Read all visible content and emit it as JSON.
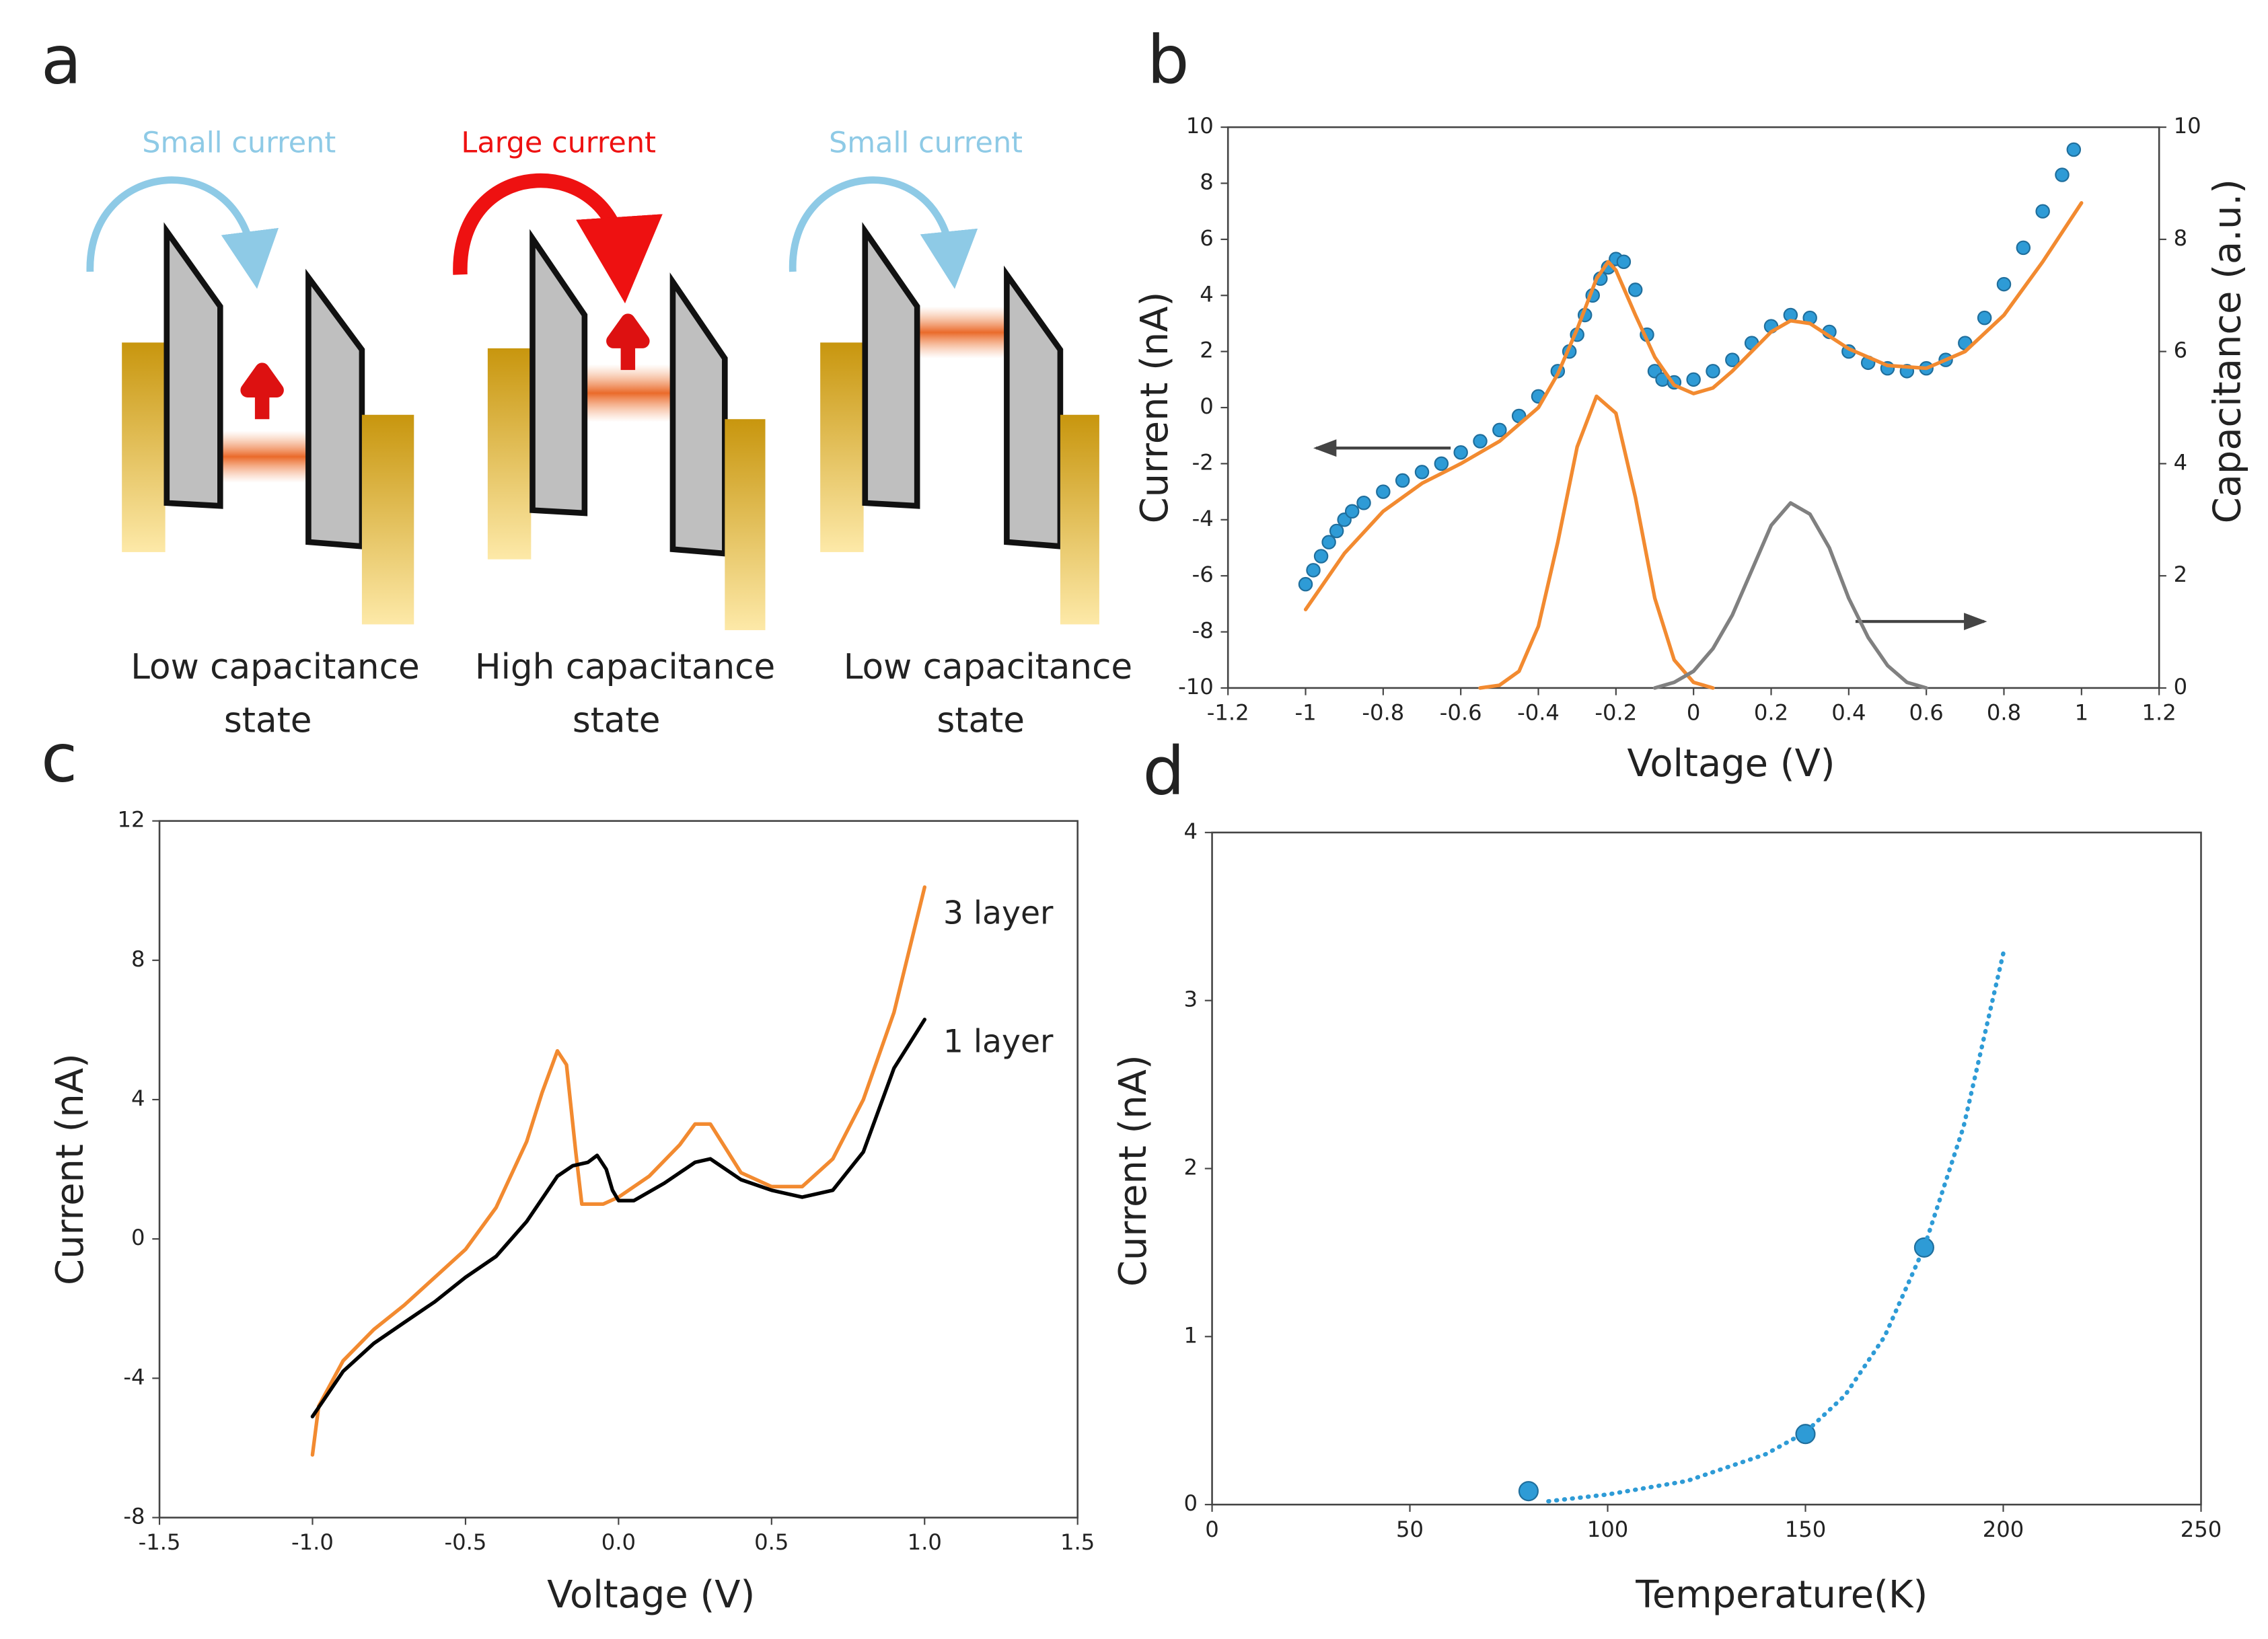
{
  "diagram": {
    "panel": "a",
    "states": [
      {
        "current": "Small current",
        "caption": [
          "Low capacitance",
          "state"
        ]
      },
      {
        "current": "Large current",
        "caption": [
          "High capacitance",
          "state"
        ]
      },
      {
        "current": "Small current",
        "caption": [
          "Low capacitance",
          "state"
        ]
      }
    ]
  },
  "chart_data": [
    {
      "type": "line",
      "panel": "b",
      "xlabel": "Voltage (V)",
      "ylabel": "Current (nA)",
      "y2label": "Capacitance (a.u.)",
      "xlim": [
        -1.2,
        1.2
      ],
      "xticks": [
        -1.2,
        -1,
        -0.8,
        -0.6,
        -0.4,
        -0.2,
        0,
        0.2,
        0.4,
        0.6,
        0.8,
        1,
        1.2
      ],
      "ylim": [
        -10,
        10
      ],
      "yticks": [
        -10,
        -8,
        -6,
        -4,
        -2,
        0,
        2,
        4,
        6,
        8,
        10
      ],
      "y2lim": [
        0,
        10
      ],
      "y2ticks": [
        0,
        2,
        4,
        6,
        8,
        10
      ],
      "series": [
        {
          "mode": "markers",
          "color": "#2e9bd6",
          "x": [
            -1,
            -0.98,
            -0.96,
            -0.94,
            -0.92,
            -0.9,
            -0.88,
            -0.85,
            -0.8,
            -0.75,
            -0.7,
            -0.65,
            -0.6,
            -0.55,
            -0.5,
            -0.45,
            -0.4,
            -0.35,
            -0.32,
            -0.3,
            -0.28,
            -0.26,
            -0.24,
            -0.22,
            -0.2,
            -0.18,
            -0.15,
            -0.12,
            -0.1,
            -0.08,
            -0.05,
            0,
            0.05,
            0.1,
            0.15,
            0.2,
            0.25,
            0.3,
            0.35,
            0.4,
            0.45,
            0.5,
            0.55,
            0.6,
            0.65,
            0.7,
            0.75,
            0.8,
            0.85,
            0.9,
            0.95,
            0.98
          ],
          "values": [
            -6.3,
            -5.8,
            -5.3,
            -4.8,
            -4.4,
            -4.0,
            -3.7,
            -3.4,
            -3.0,
            -2.6,
            -2.3,
            -2.0,
            -1.6,
            -1.2,
            -0.8,
            -0.3,
            0.4,
            1.3,
            2.0,
            2.6,
            3.3,
            4.0,
            4.6,
            5.0,
            5.3,
            5.2,
            4.2,
            2.6,
            1.3,
            1.0,
            0.9,
            1.0,
            1.3,
            1.7,
            2.3,
            2.9,
            3.3,
            3.2,
            2.7,
            2.0,
            1.6,
            1.4,
            1.3,
            1.4,
            1.7,
            2.3,
            3.2,
            4.4,
            5.7,
            7.0,
            8.3,
            9.2
          ]
        },
        {
          "mode": "lines",
          "color": "#f28a30",
          "x": [
            -1,
            -0.9,
            -0.8,
            -0.7,
            -0.6,
            -0.5,
            -0.4,
            -0.35,
            -0.3,
            -0.25,
            -0.22,
            -0.2,
            -0.15,
            -0.1,
            -0.05,
            0,
            0.05,
            0.1,
            0.2,
            0.25,
            0.3,
            0.4,
            0.5,
            0.6,
            0.7,
            0.8,
            0.9,
            1
          ],
          "values": [
            -7.2,
            -5.2,
            -3.7,
            -2.7,
            -2.0,
            -1.2,
            0.0,
            1.2,
            2.8,
            4.6,
            5.2,
            4.9,
            3.3,
            1.8,
            0.8,
            0.5,
            0.7,
            1.3,
            2.7,
            3.1,
            3.0,
            2.1,
            1.5,
            1.4,
            2.0,
            3.3,
            5.2,
            7.3
          ]
        },
        {
          "mode": "lines",
          "color": "#f28a30",
          "axis": "y2",
          "x": [
            -0.55,
            -0.5,
            -0.45,
            -0.4,
            -0.35,
            -0.3,
            -0.25,
            -0.2,
            -0.15,
            -0.1,
            -0.05,
            0,
            0.05
          ],
          "values": [
            0,
            0.05,
            0.3,
            1.1,
            2.6,
            4.3,
            5.2,
            4.9,
            3.4,
            1.6,
            0.5,
            0.1,
            0
          ]
        },
        {
          "mode": "lines",
          "color": "#808080",
          "axis": "y2",
          "x": [
            -0.1,
            -0.05,
            0,
            0.05,
            0.1,
            0.15,
            0.2,
            0.25,
            0.3,
            0.35,
            0.4,
            0.45,
            0.5,
            0.55,
            0.6
          ],
          "values": [
            0,
            0.1,
            0.3,
            0.7,
            1.3,
            2.1,
            2.9,
            3.3,
            3.1,
            2.5,
            1.6,
            0.9,
            0.4,
            0.1,
            0
          ]
        }
      ]
    },
    {
      "type": "line",
      "panel": "c",
      "xlabel": "Voltage (V)",
      "ylabel": "Current (nA)",
      "xlim": [
        -1.5,
        1.5
      ],
      "xticks": [
        -1.5,
        {
          "value": -1,
          "label": "-1.0"
        },
        -0.5,
        {
          "value": 0,
          "label": "0.0"
        },
        0.5,
        {
          "value": 1,
          "label": "1.0"
        },
        1.5
      ],
      "ylim": [
        -8,
        12
      ],
      "yticks": [
        -8,
        -4,
        0,
        4,
        8,
        12
      ],
      "series": [
        {
          "name": "3 layer",
          "mode": "lines",
          "color": "#f28a30",
          "x": [
            -1,
            -0.98,
            -0.9,
            -0.8,
            -0.7,
            -0.6,
            -0.5,
            -0.4,
            -0.3,
            -0.25,
            -0.2,
            -0.17,
            -0.14,
            -0.12,
            -0.05,
            0,
            0.1,
            0.2,
            0.25,
            0.3,
            0.35,
            0.4,
            0.5,
            0.6,
            0.7,
            0.8,
            0.9,
            1
          ],
          "values": [
            -6.2,
            -4.8,
            -3.5,
            -2.6,
            -1.9,
            -1.1,
            -0.3,
            0.9,
            2.8,
            4.2,
            5.4,
            5.0,
            2.5,
            1.0,
            1.0,
            1.2,
            1.8,
            2.7,
            3.3,
            3.3,
            2.6,
            1.9,
            1.5,
            1.5,
            2.3,
            4.0,
            6.5,
            10.1
          ]
        },
        {
          "name": "1 layer",
          "mode": "lines",
          "color": "#000000",
          "x": [
            -1,
            -0.9,
            -0.8,
            -0.7,
            -0.6,
            -0.5,
            -0.4,
            -0.3,
            -0.2,
            -0.15,
            -0.1,
            -0.07,
            -0.04,
            -0.02,
            0,
            0.05,
            0.15,
            0.25,
            0.3,
            0.4,
            0.5,
            0.6,
            0.7,
            0.8,
            0.9,
            1
          ],
          "values": [
            -5.1,
            -3.8,
            -3.0,
            -2.4,
            -1.8,
            -1.1,
            -0.5,
            0.5,
            1.8,
            2.1,
            2.2,
            2.4,
            2.0,
            1.4,
            1.1,
            1.1,
            1.6,
            2.2,
            2.3,
            1.7,
            1.4,
            1.2,
            1.4,
            2.5,
            4.9,
            6.3
          ]
        }
      ]
    },
    {
      "type": "scatter",
      "panel": "d",
      "xlabel": "Temperature(K)",
      "ylabel": "Current (nA)",
      "xlim": [
        0,
        250
      ],
      "xticks": [
        0,
        50,
        100,
        150,
        200,
        250
      ],
      "ylim": [
        0,
        4
      ],
      "yticks": [
        0,
        1,
        2,
        3,
        4
      ],
      "series": [
        {
          "mode": "markers",
          "color": "#2e9bd6",
          "x": [
            80,
            150,
            180
          ],
          "values": [
            0.08,
            0.42,
            1.53
          ]
        },
        {
          "mode": "dotted",
          "color": "#2e9bd6",
          "x": [
            85,
            100,
            120,
            140,
            150,
            160,
            170,
            180,
            190,
            200
          ],
          "values": [
            0.02,
            0.06,
            0.14,
            0.3,
            0.43,
            0.65,
            1.0,
            1.53,
            2.25,
            3.28
          ]
        }
      ]
    }
  ]
}
